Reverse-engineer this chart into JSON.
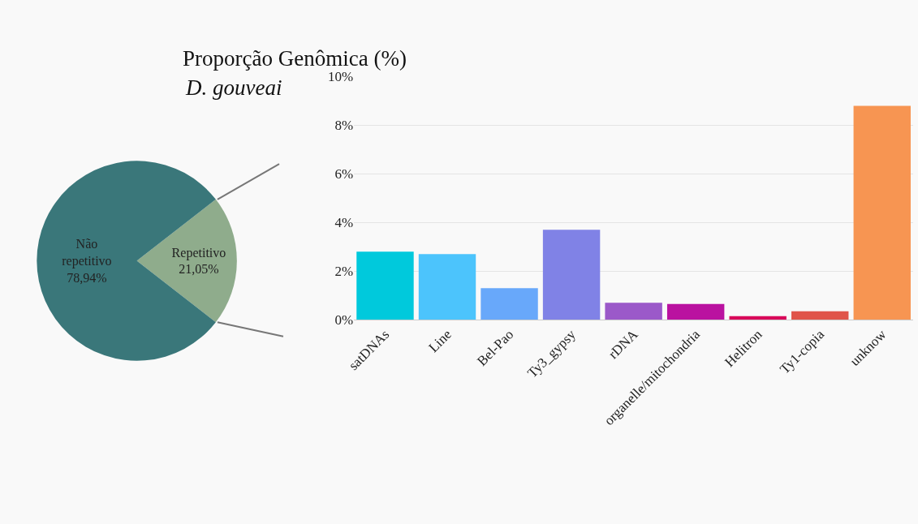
{
  "chart_data": [
    {
      "type": "pie",
      "title": "Proporção Genômica (%)",
      "subtitle": "D. gouveai",
      "categories": [
        "Repetitivo",
        "Não repetitivo"
      ],
      "values": [
        21.05,
        78.94
      ],
      "value_labels": [
        "21,05%",
        "78,94%"
      ],
      "colors": [
        "#8fac8c",
        "#3a777a"
      ],
      "legend": false
    },
    {
      "type": "bar",
      "categories": [
        "satDNAs",
        "Line",
        "Bel-Pao",
        "Ty3_gypsy",
        "rDNA",
        "organelle/mitochondria",
        "Helitron",
        "Ty1-copia",
        "unknow"
      ],
      "values": [
        2.8,
        2.7,
        1.3,
        3.7,
        0.7,
        0.65,
        0.15,
        0.35,
        8.8
      ],
      "colors": [
        "#00c9dc",
        "#4cc4fc",
        "#68a8fa",
        "#8082e6",
        "#9b59c9",
        "#ba12a0",
        "#d9095a",
        "#e0544a",
        "#f79552"
      ],
      "ylim": [
        0,
        10
      ],
      "yticks": [
        {
          "value": 0,
          "label": "0%"
        },
        {
          "value": 2,
          "label": "2%"
        },
        {
          "value": 4,
          "label": "4%"
        },
        {
          "value": 6,
          "label": "6%"
        },
        {
          "value": 8,
          "label": "8%"
        },
        {
          "value": 10,
          "label": "10%"
        }
      ],
      "grid": "y",
      "legend": false
    }
  ]
}
